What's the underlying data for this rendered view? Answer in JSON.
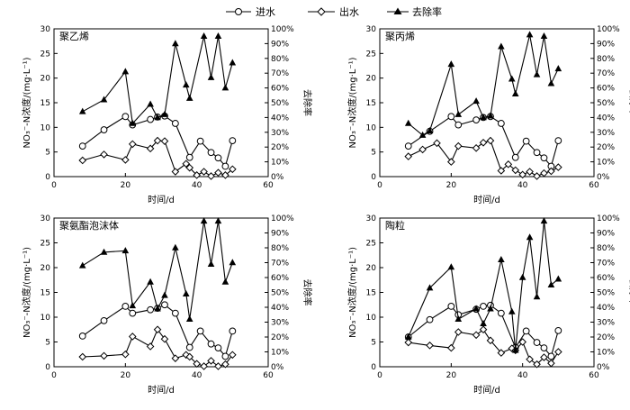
{
  "legend": {
    "influent": "进水",
    "effluent": "出水",
    "removal": "去除率"
  },
  "chart_data": [
    {
      "type": "line",
      "title": "聚乙烯",
      "xlabel": "时间/d",
      "ylabel": "NO₃⁻-N浓度/(mg·L⁻¹)",
      "y2label": "去除率",
      "xlim": [
        0,
        60
      ],
      "ylim": [
        0,
        30
      ],
      "y2lim": [
        0,
        100
      ],
      "xticks": [
        "0",
        "20",
        "40",
        "60"
      ],
      "yticks": [
        "0",
        "5",
        "10",
        "15",
        "20",
        "25",
        "30"
      ],
      "y2ticks": [
        "0%",
        "10%",
        "20%",
        "30%",
        "40%",
        "50%",
        "60%",
        "70%",
        "80%",
        "90%",
        "100%"
      ],
      "series": [
        {
          "name": "进水",
          "axis": "left",
          "marker": "circle",
          "x": [
            8,
            14,
            20,
            22,
            27,
            29,
            31,
            34,
            38,
            41,
            44,
            46,
            48,
            50
          ],
          "y": [
            6.2,
            9.5,
            12.2,
            10.5,
            11.6,
            12.1,
            12.3,
            10.8,
            3.9,
            7.2,
            4.9,
            3.8,
            2.1,
            7.3
          ]
        },
        {
          "name": "出水",
          "axis": "left",
          "marker": "diamond",
          "x": [
            8,
            14,
            20,
            22,
            27,
            29,
            31,
            34,
            37,
            38,
            40,
            42,
            44,
            46,
            48,
            50
          ],
          "y": [
            3.3,
            4.5,
            3.4,
            6.6,
            5.7,
            7.3,
            7.2,
            1.0,
            2.6,
            1.8,
            0.3,
            1.0,
            0.1,
            0.8,
            0.3,
            1.5
          ]
        },
        {
          "name": "去除率",
          "axis": "right",
          "marker": "triangle",
          "x": [
            8,
            14,
            20,
            22,
            27,
            29,
            31,
            34,
            37,
            38,
            42,
            44,
            46,
            48,
            50
          ],
          "y": [
            44,
            52,
            71,
            36,
            49,
            40,
            42,
            90,
            62,
            53,
            95,
            67,
            95,
            60,
            77
          ]
        }
      ]
    },
    {
      "type": "line",
      "title": "聚丙烯",
      "xlabel": "时间/d",
      "ylabel": "NO₃⁻-N浓度/(mg·L⁻¹)",
      "y2label": "去除率",
      "xlim": [
        0,
        60
      ],
      "ylim": [
        0,
        30
      ],
      "y2lim": [
        0,
        100
      ],
      "xticks": [
        "0",
        "20",
        "40",
        "60"
      ],
      "yticks": [
        "0",
        "5",
        "10",
        "15",
        "20",
        "25",
        "30"
      ],
      "y2ticks": [
        "0%",
        "10%",
        "20%",
        "30%",
        "40%",
        "50%",
        "60%",
        "70%",
        "80%",
        "90%",
        "100%"
      ],
      "series": [
        {
          "name": "进水",
          "axis": "left",
          "marker": "circle",
          "x": [
            8,
            14,
            20,
            22,
            27,
            29,
            31,
            34,
            38,
            41,
            44,
            46,
            48,
            50
          ],
          "y": [
            6.2,
            9.2,
            12.2,
            10.5,
            11.5,
            12.0,
            12.2,
            10.8,
            3.9,
            7.2,
            4.9,
            3.8,
            2.1,
            7.3
          ]
        },
        {
          "name": "出水",
          "axis": "left",
          "marker": "diamond",
          "x": [
            8,
            12,
            16,
            20,
            22,
            27,
            29,
            31,
            34,
            36,
            38,
            40,
            42,
            44,
            46,
            48,
            50
          ],
          "y": [
            4.1,
            5.5,
            6.8,
            3.0,
            6.2,
            5.8,
            6.9,
            7.3,
            1.2,
            2.5,
            1.3,
            0.4,
            1.0,
            0.1,
            0.7,
            1.1,
            1.9
          ]
        },
        {
          "name": "去除率",
          "axis": "right",
          "marker": "triangle",
          "x": [
            8,
            12,
            14,
            20,
            22,
            27,
            29,
            31,
            34,
            37,
            38,
            42,
            44,
            46,
            48,
            50
          ],
          "y": [
            36,
            28,
            31,
            76,
            42,
            51,
            40,
            41,
            88,
            66,
            56,
            96,
            69,
            95,
            63,
            73
          ]
        }
      ]
    },
    {
      "type": "line",
      "title": "聚氨酯泡沫体",
      "xlabel": "时间/d",
      "ylabel": "NO₃⁻-N浓度/(mg·L⁻¹)",
      "y2label": "去除率",
      "xlim": [
        0,
        60
      ],
      "ylim": [
        0,
        30
      ],
      "y2lim": [
        0,
        100
      ],
      "xticks": [
        "0",
        "20",
        "40",
        "60"
      ],
      "yticks": [
        "0",
        "5",
        "10",
        "15",
        "20",
        "25",
        "30"
      ],
      "y2ticks": [
        "0%",
        "10%",
        "20%",
        "30%",
        "40%",
        "50%",
        "60%",
        "70%",
        "80%",
        "90%",
        "100%"
      ],
      "series": [
        {
          "name": "进水",
          "axis": "left",
          "marker": "circle",
          "x": [
            8,
            14,
            20,
            22,
            27,
            29,
            31,
            34,
            38,
            41,
            44,
            46,
            48,
            50
          ],
          "y": [
            6.2,
            9.3,
            12.2,
            10.8,
            11.5,
            11.8,
            12.5,
            10.8,
            3.9,
            7.2,
            4.6,
            3.8,
            2.1,
            7.2
          ]
        },
        {
          "name": "出水",
          "axis": "left",
          "marker": "diamond",
          "x": [
            8,
            14,
            20,
            22,
            27,
            29,
            31,
            34,
            37,
            38,
            40,
            42,
            44,
            46,
            48,
            50
          ],
          "y": [
            2.0,
            2.2,
            2.5,
            6.1,
            4.1,
            7.5,
            5.6,
            1.7,
            2.4,
            2.0,
            0.6,
            0.1,
            1.2,
            0.1,
            0.5,
            2.4
          ]
        },
        {
          "name": "去除率",
          "axis": "right",
          "marker": "triangle",
          "x": [
            8,
            14,
            20,
            22,
            27,
            29,
            31,
            34,
            37,
            38,
            42,
            44,
            46,
            48,
            50
          ],
          "y": [
            68,
            77,
            78,
            41,
            57,
            39,
            48,
            80,
            49,
            32,
            98,
            69,
            98,
            57,
            70
          ]
        }
      ]
    },
    {
      "type": "line",
      "title": "陶粒",
      "xlabel": "时间/d",
      "ylabel": "NO₃⁻-N浓度/(mg·L⁻¹)",
      "y2label": "去除率",
      "xlim": [
        0,
        60
      ],
      "ylim": [
        0,
        30
      ],
      "y2lim": [
        0,
        100
      ],
      "xticks": [
        "0",
        "20",
        "40",
        "60"
      ],
      "yticks": [
        "0",
        "5",
        "10",
        "15",
        "20",
        "25",
        "30"
      ],
      "y2ticks": [
        "0%",
        "10%",
        "20%",
        "30%",
        "40%",
        "50%",
        "60%",
        "70%",
        "80%",
        "90%",
        "100%"
      ],
      "series": [
        {
          "name": "进水",
          "axis": "left",
          "marker": "circle",
          "x": [
            8,
            14,
            20,
            22,
            27,
            29,
            31,
            34,
            38,
            41,
            44,
            46,
            48,
            50
          ],
          "y": [
            6.0,
            9.5,
            12.2,
            10.5,
            11.6,
            12.2,
            12.4,
            10.8,
            3.9,
            7.2,
            4.9,
            3.8,
            2.1,
            7.3
          ]
        },
        {
          "name": "出水",
          "axis": "left",
          "marker": "diamond",
          "x": [
            8,
            14,
            20,
            22,
            27,
            29,
            31,
            34,
            37,
            38,
            40,
            42,
            44,
            46,
            48,
            50
          ],
          "y": [
            4.9,
            4.3,
            3.8,
            7.0,
            6.4,
            7.5,
            5.3,
            2.8,
            3.7,
            3.3,
            5.0,
            1.5,
            0.5,
            1.9,
            0.7,
            3.0
          ]
        },
        {
          "name": "去除率",
          "axis": "right",
          "marker": "triangle",
          "x": [
            8,
            14,
            20,
            22,
            27,
            29,
            31,
            34,
            37,
            38,
            40,
            42,
            44,
            46,
            48,
            50
          ],
          "y": [
            20,
            53,
            67,
            32,
            39,
            29,
            39,
            72,
            37,
            11,
            60,
            87,
            47,
            98,
            55,
            59
          ]
        }
      ]
    }
  ]
}
